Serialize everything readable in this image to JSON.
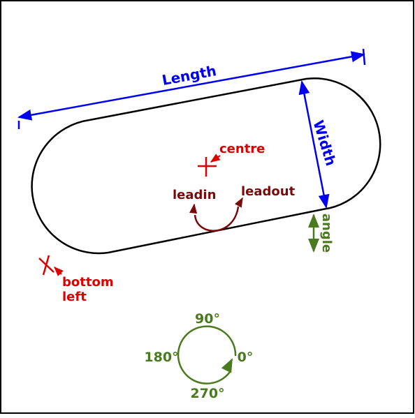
{
  "labels": {
    "length": "Length",
    "width": "Width",
    "centre": "centre",
    "leadin": "leadin",
    "leadout": "leadout",
    "angle": "angle",
    "bottom_left_line1": "bottom",
    "bottom_left_line2": "left",
    "deg_90": "90°",
    "deg_180": "180°",
    "deg_0": "0°",
    "deg_270": "270°"
  },
  "colors": {
    "outline": "#000000",
    "dimension": "#0000ee",
    "marker": "#dd0000",
    "lead": "#7a0a0a",
    "angle": "#4a7a1e"
  }
}
